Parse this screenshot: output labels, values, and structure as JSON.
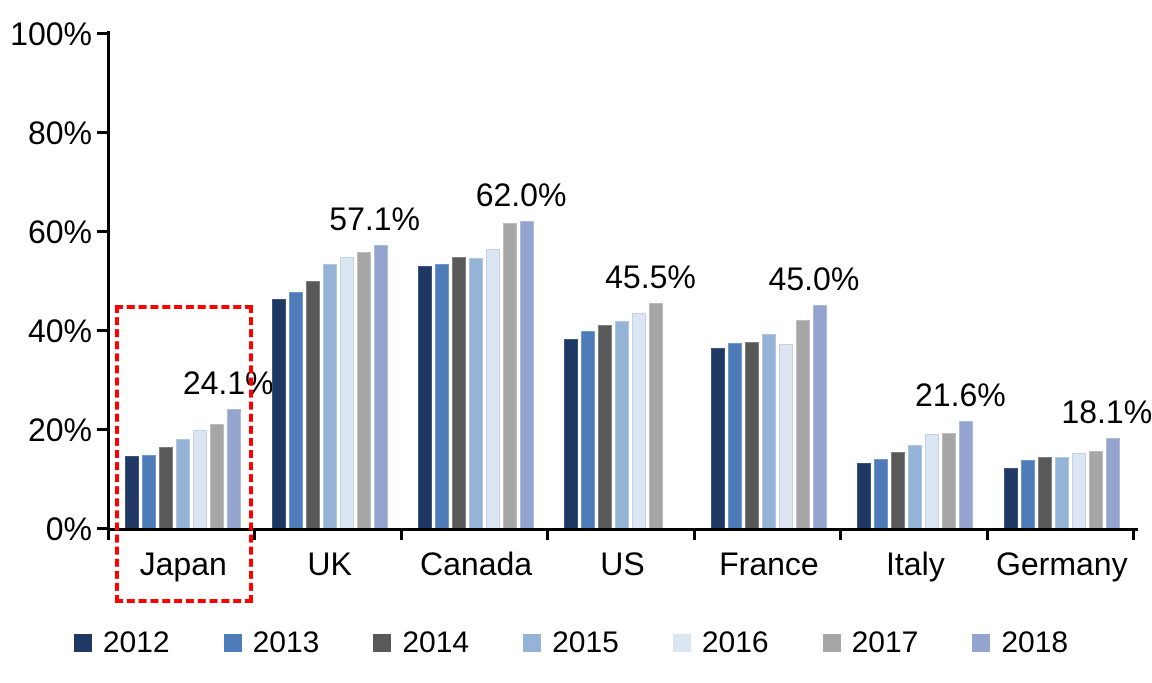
{
  "chart_data": {
    "type": "bar",
    "title": "",
    "xlabel": "",
    "ylabel": "",
    "ylim": [
      0,
      100
    ],
    "grid": false,
    "legend_position": "bottom",
    "categories": [
      "Japan",
      "UK",
      "Canada",
      "US",
      "France",
      "Italy",
      "Germany"
    ],
    "yticks": [
      {
        "label": "0%",
        "value": 0
      },
      {
        "label": "20%",
        "value": 20
      },
      {
        "label": "40%",
        "value": 40
      },
      {
        "label": "60%",
        "value": 60
      },
      {
        "label": "80%",
        "value": 80
      },
      {
        "label": "100%",
        "value": 100
      }
    ],
    "series": [
      {
        "name": "2012",
        "color": "#1F3864",
        "border": "#3A5480",
        "values": [
          14.6,
          46.3,
          52.9,
          38.2,
          36.4,
          13.1,
          12.1
        ]
      },
      {
        "name": "2013",
        "color": "#4E7CB8",
        "border": "#7098C9",
        "values": [
          14.8,
          47.7,
          53.3,
          39.8,
          37.4,
          13.9,
          13.7
        ]
      },
      {
        "name": "2014",
        "color": "#595959",
        "border": "#7F7F7F",
        "values": [
          16.4,
          49.9,
          54.7,
          41.0,
          37.5,
          15.4,
          14.3
        ]
      },
      {
        "name": "2015",
        "color": "#95B3D7",
        "border": "#B3C6E1",
        "values": [
          17.9,
          53.3,
          54.5,
          41.8,
          39.2,
          16.8,
          14.4
        ]
      },
      {
        "name": "2016",
        "color": "#DCE6F2",
        "border": "#C3D2E8",
        "values": [
          19.8,
          54.7,
          56.4,
          43.4,
          37.2,
          19.0,
          15.2
        ]
      },
      {
        "name": "2017",
        "color": "#A6A6A6",
        "border": "#BDBDBD",
        "values": [
          21.0,
          55.8,
          61.6,
          45.5,
          42.0,
          19.2,
          15.6
        ]
      },
      {
        "name": "2018",
        "color": "#93A5CF",
        "border": "#AEBCDB",
        "values": [
          24.1,
          57.1,
          62.0,
          null,
          45.0,
          21.6,
          18.1
        ]
      }
    ],
    "data_labels": [
      {
        "category": "Japan",
        "series": "2018",
        "text": "24.1%"
      },
      {
        "category": "UK",
        "series": "2018",
        "text": "57.1%"
      },
      {
        "category": "Canada",
        "series": "2018",
        "text": "62.0%"
      },
      {
        "category": "US",
        "series": "2017",
        "text": "45.5%"
      },
      {
        "category": "France",
        "series": "2018",
        "text": "45.0%"
      },
      {
        "category": "Italy",
        "series": "2018",
        "text": "21.6%"
      },
      {
        "category": "Germany",
        "series": "2018",
        "text": "18.1%"
      }
    ],
    "highlight": {
      "category": "Japan",
      "style": "red-dashed-box",
      "color": "#FF0000"
    }
  }
}
